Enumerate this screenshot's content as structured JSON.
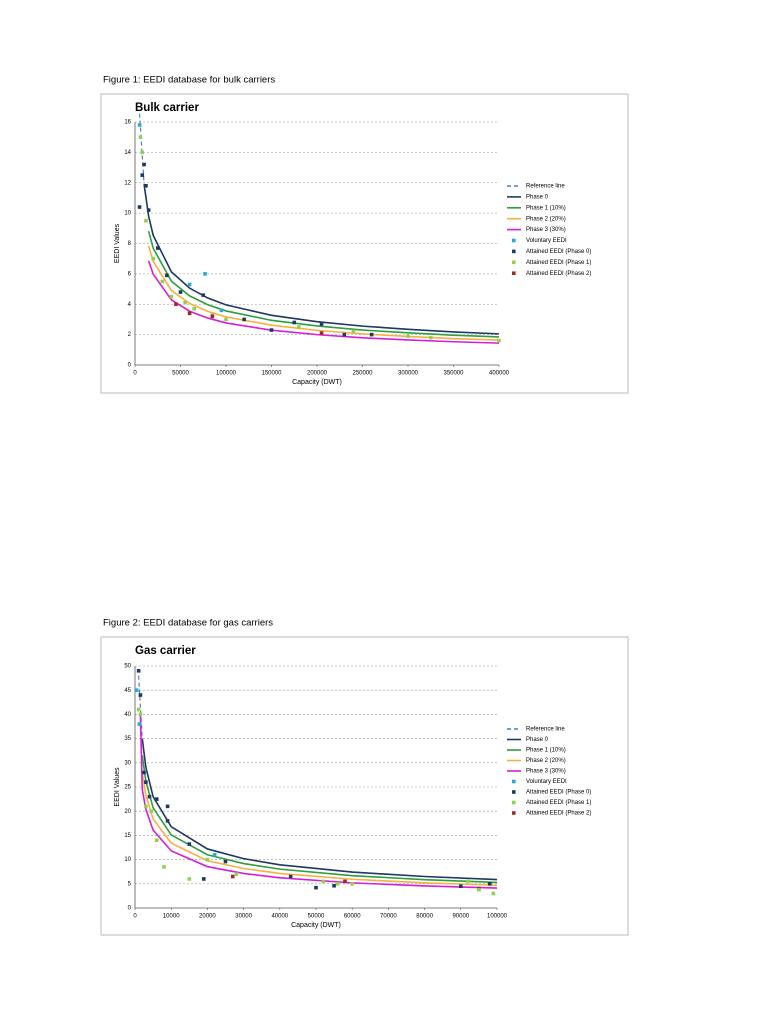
{
  "captions": [
    "Figure 1: EEDI database for bulk carriers",
    "Figure 2: EEDI database for gas carriers"
  ],
  "chart_data": [
    {
      "type": "scatter",
      "title": "Bulk carrier",
      "xlabel": "Capacity (DWT)",
      "ylabel": "EEDI Values",
      "xlim": [
        0,
        400000
      ],
      "xticks": [
        0,
        50000,
        100000,
        150000,
        200000,
        250000,
        300000,
        350000,
        400000
      ],
      "ylim": [
        0,
        16
      ],
      "yticks": [
        0,
        2,
        4,
        6,
        8,
        10,
        12,
        14,
        16
      ],
      "grid": true,
      "legend": "right",
      "series": [
        {
          "name": "Reference line",
          "mode": "line",
          "style": "dashed",
          "color": "#4f81bd",
          "x": [
            5000,
            10000,
            15000,
            20000,
            40000,
            60000,
            80000,
            100000,
            150000,
            200000,
            250000,
            300000,
            350000,
            400000
          ],
          "values": [
            16.55,
            11.89,
            9.79,
            8.54,
            6.13,
            5.06,
            4.41,
            3.96,
            3.27,
            2.85,
            2.56,
            2.35,
            2.18,
            2.05
          ]
        },
        {
          "name": "Phase 0",
          "mode": "line",
          "color": "#1f3864",
          "x": [
            10000,
            15000,
            20000,
            40000,
            60000,
            80000,
            100000,
            150000,
            200000,
            250000,
            300000,
            350000,
            400000
          ],
          "values": [
            11.89,
            9.79,
            8.54,
            6.13,
            5.06,
            4.41,
            3.96,
            3.27,
            2.85,
            2.56,
            2.35,
            2.18,
            2.05
          ]
        },
        {
          "name": "Phase 1 (10%)",
          "mode": "line",
          "color": "#2e9e3e",
          "x": [
            15000,
            20000,
            40000,
            60000,
            80000,
            100000,
            150000,
            200000,
            250000,
            300000,
            350000,
            400000
          ],
          "values": [
            8.81,
            7.69,
            5.52,
            4.55,
            3.97,
            3.56,
            2.94,
            2.57,
            2.3,
            2.12,
            1.96,
            1.85
          ]
        },
        {
          "name": "Phase 2 (20%)",
          "mode": "line",
          "color": "#f5b041",
          "x": [
            15000,
            20000,
            40000,
            60000,
            80000,
            100000,
            150000,
            200000,
            250000,
            300000,
            350000,
            400000
          ],
          "values": [
            7.83,
            6.83,
            4.9,
            4.05,
            3.53,
            3.17,
            2.62,
            2.28,
            2.05,
            1.88,
            1.74,
            1.64
          ]
        },
        {
          "name": "Phase 3 (30%)",
          "mode": "line",
          "color": "#d61fd6",
          "x": [
            15000,
            20000,
            40000,
            60000,
            80000,
            100000,
            150000,
            200000,
            250000,
            300000,
            350000,
            400000
          ],
          "values": [
            6.85,
            5.98,
            4.29,
            3.54,
            3.09,
            2.77,
            2.29,
            2.0,
            1.79,
            1.65,
            1.53,
            1.44
          ]
        },
        {
          "name": "Voluntary EEDI",
          "mode": "markers",
          "color": "#2aa9d6",
          "x": [
            5000,
            60000,
            77000,
            95000
          ],
          "values": [
            15.8,
            5.3,
            6.0,
            3.6
          ]
        },
        {
          "name": "Attained EEDI (Phase 0)",
          "mode": "markers",
          "color": "#1f3864",
          "x": [
            5000,
            8000,
            10000,
            12000,
            15000,
            25000,
            35000,
            50000,
            75000,
            120000,
            150000,
            175000,
            205000,
            230000,
            260000
          ],
          "values": [
            10.4,
            12.5,
            13.2,
            11.8,
            10.2,
            7.7,
            5.9,
            4.8,
            4.6,
            3.0,
            2.3,
            2.8,
            2.7,
            2.0,
            2.0
          ]
        },
        {
          "name": "Attained EEDI (Phase 1)",
          "mode": "markers",
          "color": "#92d050",
          "x": [
            6000,
            8000,
            12000,
            20000,
            30000,
            40000,
            55000,
            65000,
            85000,
            100000,
            180000,
            240000,
            300000,
            325000,
            400000
          ],
          "values": [
            15.0,
            14.0,
            9.5,
            7.0,
            5.5,
            4.5,
            4.1,
            3.7,
            3.3,
            3.0,
            2.5,
            2.2,
            1.9,
            1.8,
            1.6
          ]
        },
        {
          "name": "Attained EEDI (Phase 2)",
          "mode": "markers",
          "color": "#9c2a2a",
          "x": [
            45000,
            60000,
            85000,
            205000
          ],
          "values": [
            4.0,
            3.4,
            3.2,
            2.1
          ]
        }
      ]
    },
    {
      "type": "scatter",
      "title": "Gas carrier",
      "xlabel": "Capacity (DWT)",
      "ylabel": "EEDI Values",
      "xlim": [
        0,
        100000
      ],
      "xticks": [
        0,
        10000,
        20000,
        30000,
        40000,
        50000,
        60000,
        70000,
        80000,
        90000,
        100000
      ],
      "ylim": [
        0,
        50
      ],
      "yticks": [
        0,
        5,
        10,
        15,
        20,
        25,
        30,
        35,
        40,
        45,
        50
      ],
      "grid": true,
      "legend": "right",
      "series": [
        {
          "name": "Reference line",
          "mode": "line",
          "style": "dashed",
          "color": "#4f81bd",
          "x": [
            1000,
            2000,
            3000,
            5000,
            10000,
            20000,
            30000,
            40000,
            60000,
            80000,
            100000
          ],
          "values": [
            48.0,
            35.0,
            29.1,
            23.0,
            16.8,
            12.2,
            10.2,
            8.92,
            7.42,
            6.51,
            5.88
          ]
        },
        {
          "name": "Phase 0",
          "mode": "line",
          "color": "#1f3864",
          "x": [
            2000,
            3000,
            5000,
            10000,
            20000,
            30000,
            40000,
            60000,
            80000,
            100000
          ],
          "values": [
            35.0,
            29.1,
            23.0,
            16.8,
            12.2,
            10.2,
            8.92,
            7.42,
            6.51,
            5.88
          ]
        },
        {
          "name": "Phase 1 (10%)",
          "mode": "line",
          "color": "#2e9e3e",
          "x": [
            2000,
            3000,
            5000,
            10000,
            20000,
            30000,
            40000,
            60000,
            80000,
            100000
          ],
          "values": [
            31.5,
            26.2,
            20.7,
            15.1,
            11.0,
            9.18,
            8.03,
            6.68,
            5.86,
            5.29
          ]
        },
        {
          "name": "Phase 2 (20%)",
          "mode": "line",
          "color": "#f5b041",
          "x": [
            2000,
            3000,
            5000,
            10000,
            20000,
            30000,
            40000,
            60000,
            80000,
            100000
          ],
          "values": [
            28.0,
            23.3,
            18.4,
            13.4,
            9.76,
            8.16,
            7.14,
            5.94,
            5.21,
            4.7
          ]
        },
        {
          "name": "Phase 3 (30%)",
          "mode": "line",
          "color": "#d61fd6",
          "x": [
            1500,
            2000,
            3000,
            5000,
            10000,
            20000,
            30000,
            40000,
            60000,
            80000,
            100000
          ],
          "values": [
            40.0,
            24.5,
            20.4,
            16.1,
            11.8,
            8.54,
            7.14,
            6.24,
            5.19,
            4.56,
            4.12
          ]
        },
        {
          "name": "Voluntary EEDI",
          "mode": "markers",
          "color": "#2aa9d6",
          "x": [
            500,
            1200,
            22000
          ],
          "values": [
            45,
            38,
            11
          ]
        },
        {
          "name": "Attained EEDI (Phase 0)",
          "mode": "markers",
          "color": "#1f3864",
          "x": [
            1000,
            1500,
            2500,
            3000,
            4000,
            6000,
            9000,
            9000,
            15000,
            19000,
            25000,
            43000,
            50000,
            55000,
            90000,
            95000,
            98000
          ],
          "values": [
            49,
            44,
            28,
            26,
            23,
            22.5,
            18,
            21,
            13.2,
            6,
            9.6,
            6.5,
            4.2,
            4.6,
            4.5,
            4,
            5
          ]
        },
        {
          "name": "Attained EEDI (Phase 1)",
          "mode": "markers",
          "color": "#92d050",
          "x": [
            1000,
            1500,
            3000,
            4500,
            6000,
            8000,
            15000,
            20000,
            28000,
            52000,
            56000,
            60000,
            92000,
            95000,
            99000
          ],
          "values": [
            41,
            40,
            21,
            20,
            14,
            8.5,
            6,
            10,
            7,
            5.5,
            5,
            5,
            5.5,
            3.8,
            3
          ]
        },
        {
          "name": "Attained EEDI (Phase 2)",
          "mode": "markers",
          "color": "#9c2a2a",
          "x": [
            27000,
            58000
          ],
          "values": [
            6.5,
            5.5
          ]
        }
      ]
    }
  ]
}
